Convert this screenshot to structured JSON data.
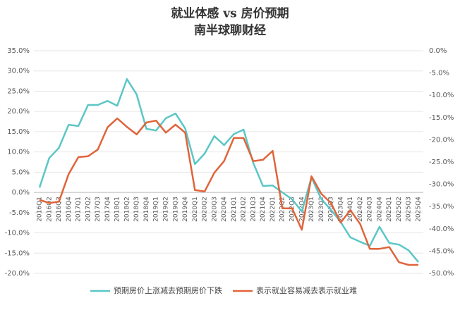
{
  "chart_data": {
    "type": "line",
    "title": "就业体感 vs 房价预期",
    "subtitle": "南半球聊财经",
    "categories": [
      "2016Q1",
      "2016Q2",
      "2016Q3",
      "2016Q4",
      "2017Q1",
      "2017Q2",
      "2017Q3",
      "2017Q4",
      "2018Q1",
      "2018Q2",
      "2018Q3",
      "2018Q4",
      "2019Q1",
      "2019Q2",
      "2019Q3",
      "2019Q4",
      "2020Q1",
      "2020Q2",
      "2020Q3",
      "2020Q4",
      "2021Q1",
      "2021Q2",
      "2021Q3",
      "2021Q4",
      "2022Q1",
      "2022Q2",
      "2022Q3",
      "2022Q4",
      "2023Q1",
      "2023Q2",
      "2023Q3",
      "2023Q4",
      "2024Q1",
      "2024Q2",
      "2024Q3",
      "2024Q4",
      "2025Q1",
      "2025Q2",
      "2025Q3",
      "2025Q4"
    ],
    "series": [
      {
        "name": "预期房价上涨减去预期房价下跌",
        "color": "#5cc6c6",
        "values": [
          1.2,
          8.5,
          11,
          16.7,
          16.4,
          21.6,
          21.6,
          22.6,
          21.4,
          28,
          24.2,
          15.7,
          15.3,
          18.3,
          19.5,
          15.8,
          7,
          9.6,
          13.9,
          11.7,
          14.4,
          15.5,
          7.3,
          1.6,
          1.7,
          0,
          -1.7,
          -4.7,
          3.7,
          -1.6,
          -4.3,
          -7.3,
          -11.1,
          -12.2,
          -13.2,
          -8.5,
          -12.5,
          -12.9,
          -14.3,
          -17.2
        ]
      },
      {
        "name": "表示就业容易减去表示就业难",
        "color": "#e0643a",
        "axis": "y2",
        "values": [
          -33.5,
          -34.2,
          -33.9,
          -27.7,
          -23.9,
          -23.7,
          -22.2,
          -17.2,
          -15.2,
          -17.1,
          -18.8,
          -16.1,
          -15.7,
          -18.4,
          -16.6,
          -18.4,
          -31.3,
          -31.6,
          -27.4,
          -24.8,
          -19.6,
          -19.6,
          -24.8,
          -24.5,
          -22.5,
          -35.4,
          -35.4,
          -40.2,
          -28.2,
          -32.1,
          -34.2,
          -38.6,
          -35.8,
          -38.9,
          -44.5,
          -44.5,
          -44.1,
          -47.5,
          -48.1,
          -48.1
        ]
      }
    ],
    "ylim": [
      -20,
      35
    ],
    "yticks": [
      {
        "value": -20,
        "label": "-20.0%"
      },
      {
        "value": -15,
        "label": "-15.0%"
      },
      {
        "value": -10,
        "label": "-10.0%"
      },
      {
        "value": -5,
        "label": "-5.0%"
      },
      {
        "value": 0,
        "label": "0.0%"
      },
      {
        "value": 5,
        "label": "5.0%"
      },
      {
        "value": 10,
        "label": "10.0%"
      },
      {
        "value": 15,
        "label": "15.0%"
      },
      {
        "value": 20,
        "label": "20.0%"
      },
      {
        "value": 25,
        "label": "25.0%"
      },
      {
        "value": 30,
        "label": "30.0%"
      },
      {
        "value": 35,
        "label": "35.0%"
      }
    ],
    "y2lim": [
      -50,
      0
    ],
    "y2ticks": [
      {
        "value": -50,
        "label": "-50.0%"
      },
      {
        "value": -45,
        "label": "-45.0%"
      },
      {
        "value": -40,
        "label": "-40.0%"
      },
      {
        "value": -35,
        "label": "-35.0%"
      },
      {
        "value": -30,
        "label": "-30.0%"
      },
      {
        "value": -25,
        "label": "-25.0%"
      },
      {
        "value": -20,
        "label": "-20.0%"
      },
      {
        "value": -15,
        "label": "-15.0%"
      },
      {
        "value": -10,
        "label": "-10.0%"
      },
      {
        "value": -5,
        "label": "-5.0%"
      },
      {
        "value": 0,
        "label": "0.0%"
      }
    ],
    "grid": true
  }
}
